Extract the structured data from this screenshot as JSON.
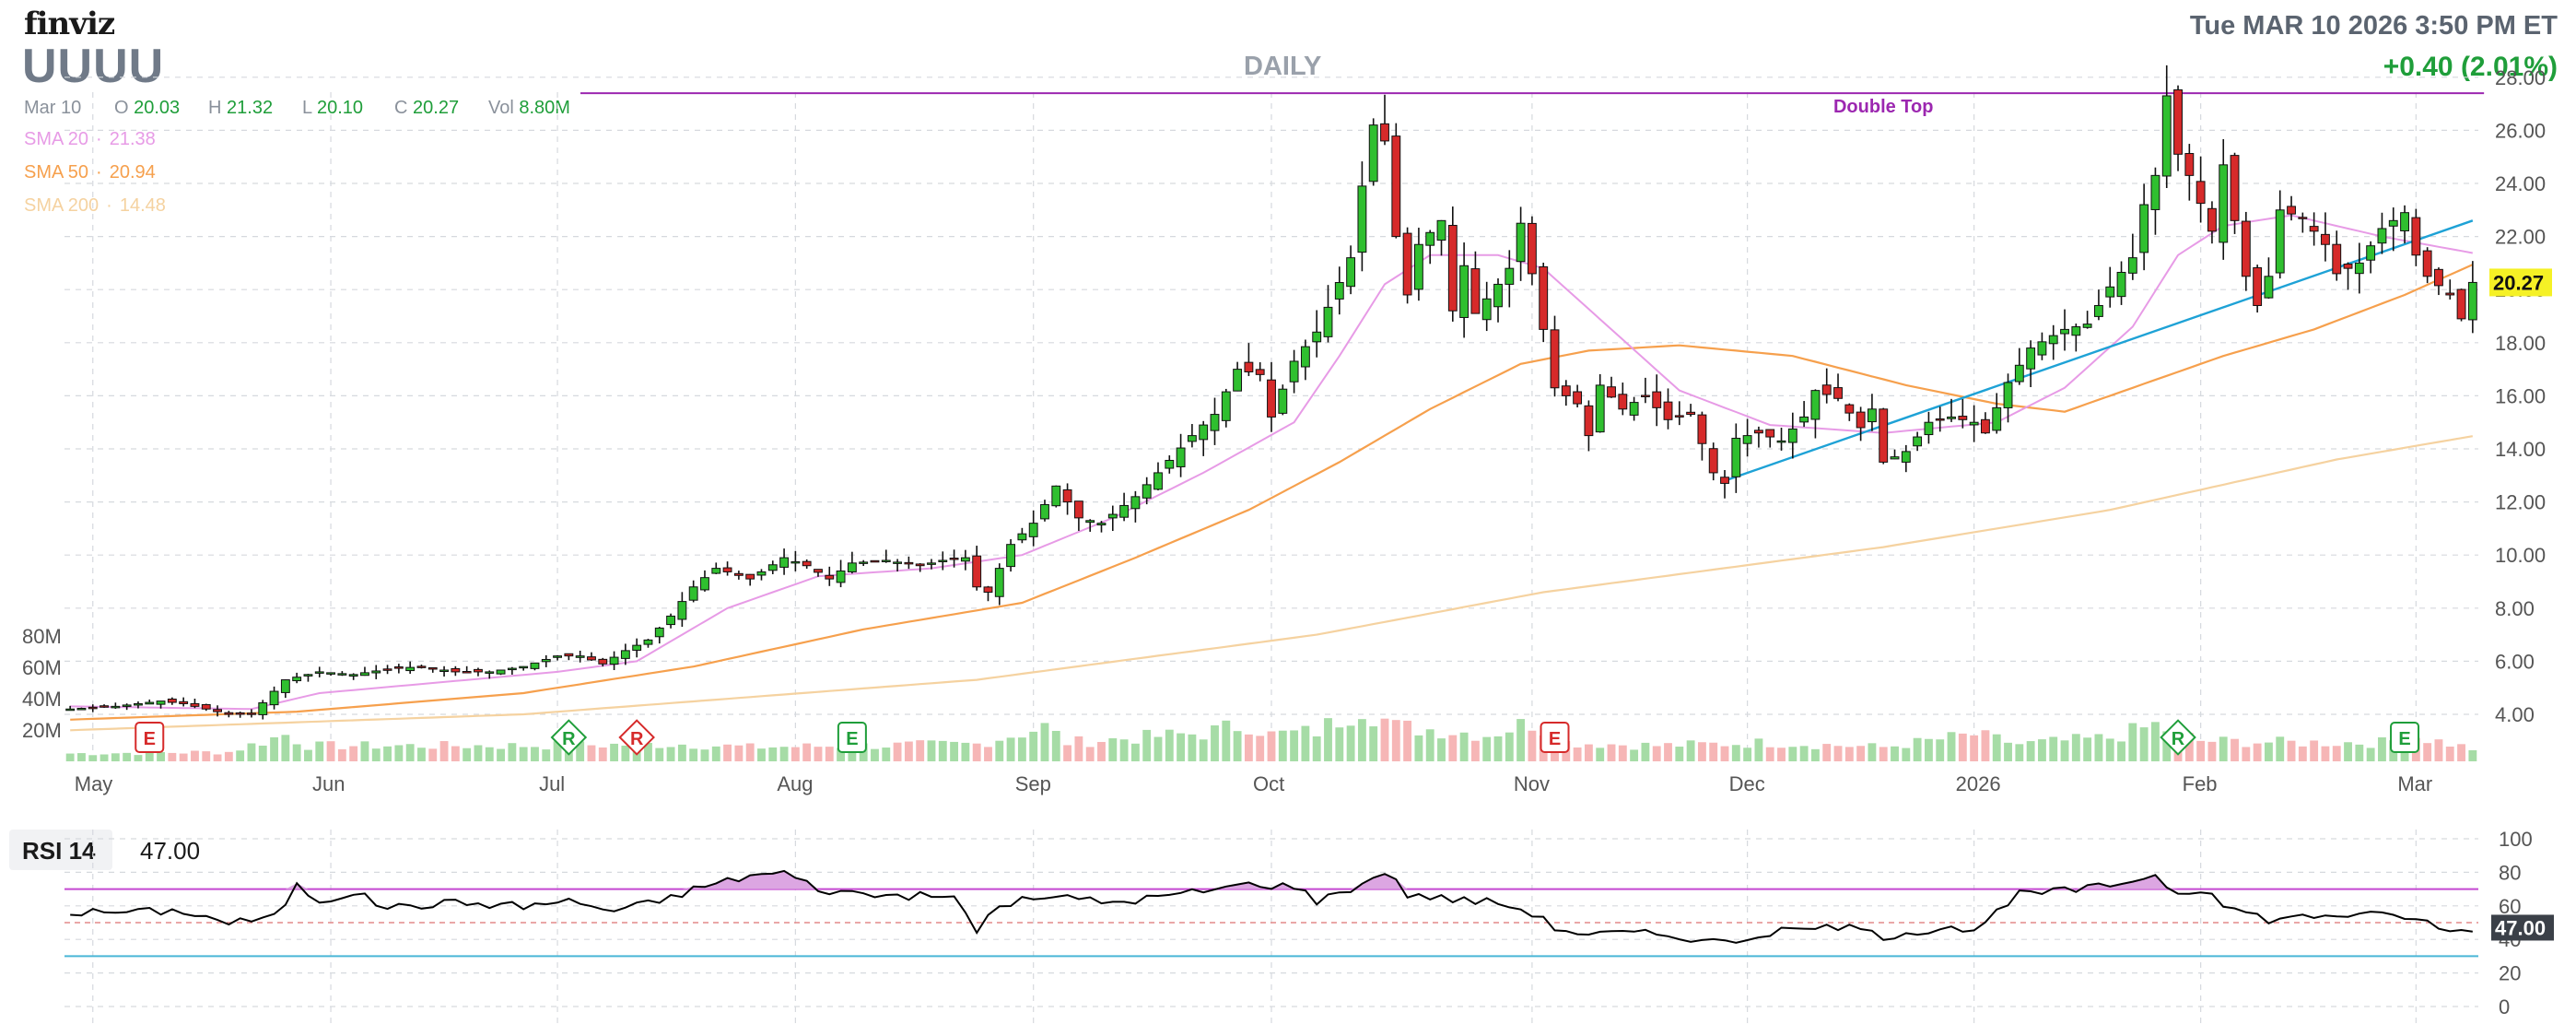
{
  "header": {
    "logo": "finviz",
    "ticker": "UUUU",
    "period": "DAILY",
    "datetime": "Tue MAR 10 2026 3:50 PM ET",
    "change": "+0.40 (2.01%)"
  },
  "ohlc": {
    "date": "Mar 10",
    "o_label": "O",
    "o": "20.03",
    "h_label": "H",
    "h": "21.32",
    "l_label": "L",
    "l": "20.10",
    "c_label": "C",
    "c": "20.27",
    "vol_label": "Vol",
    "vol": "8.80M"
  },
  "sma": [
    {
      "label": "SMA 20",
      "value": "21.38",
      "color": "#e79be6"
    },
    {
      "label": "SMA 50",
      "value": "20.94",
      "color": "#f6a04d"
    },
    {
      "label": "SMA 200",
      "value": "14.48",
      "color": "#f5d2a0"
    }
  ],
  "colors": {
    "up": "#2fbf2f",
    "down": "#d62a2a",
    "up_vol": "#a6dca6",
    "down_vol": "#f6b6b6",
    "sma20": "#e79be6",
    "sma50": "#f6a04d",
    "sma200": "#f5d2a0",
    "trendline": "#1ea2d6",
    "double_top": "#9c27b0",
    "rsi": "#000000",
    "rsi_upper": "#c448d1",
    "rsi_lower": "#4ab6d6",
    "price_tag": "#f5f125",
    "grid": "#d6d9de"
  },
  "chart_data": [
    {
      "type": "candlestick",
      "title": "",
      "ylim": [
        4,
        28
      ],
      "y_ticks": [
        "4.00",
        "6.00",
        "8.00",
        "10.00",
        "12.00",
        "14.00",
        "16.00",
        "18.00",
        "20.00",
        "22.00",
        "24.00",
        "26.00",
        "28.00"
      ],
      "x_ticks": [
        {
          "label": "May",
          "i": 2
        },
        {
          "label": "Jun",
          "i": 23
        },
        {
          "label": "Jul",
          "i": 43
        },
        {
          "label": "Aug",
          "i": 64
        },
        {
          "label": "Sep",
          "i": 85
        },
        {
          "label": "Oct",
          "i": 106
        },
        {
          "label": "Nov",
          "i": 129
        },
        {
          "label": "Dec",
          "i": 148
        },
        {
          "label": "2026",
          "i": 168
        },
        {
          "label": "Feb",
          "i": 188
        },
        {
          "label": "Mar",
          "i": 207
        }
      ],
      "current_price": "20.27",
      "annotation": "Double Top",
      "resistance_level": 27.4,
      "trendline": {
        "i0": 146,
        "y0": 12.8,
        "i1": 212,
        "y1": 22.6
      },
      "events": [
        {
          "label": "E",
          "i": 7,
          "kind": "earnings-down"
        },
        {
          "label": "R",
          "i": 44,
          "kind": "rating-up"
        },
        {
          "label": "R",
          "i": 50,
          "kind": "rating-down"
        },
        {
          "label": "E",
          "i": 69,
          "kind": "earnings-up"
        },
        {
          "label": "E",
          "i": 131,
          "kind": "earnings-down"
        },
        {
          "label": "R",
          "i": 186,
          "kind": "rating-up"
        },
        {
          "label": "E",
          "i": 206,
          "kind": "earnings-up"
        }
      ],
      "anchors": [
        [
          0,
          4.2
        ],
        [
          4,
          4.3
        ],
        [
          8,
          4.5
        ],
        [
          10,
          4.4
        ],
        [
          14,
          4.0
        ],
        [
          16,
          4.0
        ],
        [
          19,
          5.3
        ],
        [
          22,
          5.6
        ],
        [
          25,
          5.5
        ],
        [
          28,
          5.7
        ],
        [
          31,
          5.8
        ],
        [
          34,
          5.6
        ],
        [
          37,
          5.6
        ],
        [
          40,
          5.8
        ],
        [
          43,
          6.2
        ],
        [
          45,
          6.2
        ],
        [
          47,
          5.9
        ],
        [
          49,
          6.4
        ],
        [
          51,
          6.8
        ],
        [
          53,
          7.7
        ],
        [
          55,
          8.8
        ],
        [
          57,
          9.5
        ],
        [
          60,
          9.1
        ],
        [
          63,
          9.9
        ],
        [
          65,
          9.6
        ],
        [
          67,
          9.1
        ],
        [
          69,
          9.7
        ],
        [
          72,
          9.8
        ],
        [
          75,
          9.6
        ],
        [
          77,
          9.8
        ],
        [
          79,
          9.9
        ],
        [
          80,
          8.8
        ],
        [
          81,
          8.6
        ],
        [
          83,
          10.4
        ],
        [
          85,
          11.2
        ],
        [
          87,
          12.6
        ],
        [
          89,
          11.4
        ],
        [
          91,
          11.2
        ],
        [
          94,
          12.2
        ],
        [
          96,
          13.1
        ],
        [
          99,
          14.5
        ],
        [
          101,
          15.3
        ],
        [
          103,
          17.0
        ],
        [
          105,
          16.8
        ],
        [
          106,
          15.2
        ],
        [
          108,
          17.3
        ],
        [
          110,
          18.4
        ],
        [
          113,
          21.2
        ],
        [
          114,
          23.9
        ],
        [
          115,
          26.2
        ],
        [
          116,
          25.6
        ],
        [
          117,
          22.0
        ],
        [
          118,
          19.8
        ],
        [
          119,
          21.7
        ],
        [
          121,
          22.6
        ],
        [
          122,
          19.2
        ],
        [
          123,
          20.9
        ],
        [
          124,
          19.1
        ],
        [
          126,
          20.2
        ],
        [
          127,
          20.8
        ],
        [
          128,
          22.5
        ],
        [
          129,
          20.6
        ],
        [
          130,
          18.5
        ],
        [
          131,
          16.3
        ],
        [
          133,
          15.7
        ],
        [
          134,
          14.5
        ],
        [
          135,
          16.4
        ],
        [
          137,
          15.5
        ],
        [
          139,
          16.0
        ],
        [
          141,
          15.1
        ],
        [
          143,
          15.3
        ],
        [
          145,
          13.1
        ],
        [
          146,
          12.7
        ],
        [
          147,
          14.4
        ],
        [
          149,
          14.6
        ],
        [
          151,
          14.3
        ],
        [
          153,
          15.2
        ],
        [
          154,
          16.2
        ],
        [
          156,
          15.9
        ],
        [
          158,
          14.8
        ],
        [
          159,
          15.5
        ],
        [
          160,
          13.5
        ],
        [
          162,
          13.9
        ],
        [
          164,
          15.0
        ],
        [
          166,
          15.2
        ],
        [
          168,
          15.0
        ],
        [
          169,
          14.6
        ],
        [
          171,
          16.5
        ],
        [
          173,
          17.8
        ],
        [
          176,
          18.5
        ],
        [
          178,
          18.7
        ],
        [
          180,
          20.1
        ],
        [
          182,
          21.2
        ],
        [
          183,
          23.2
        ],
        [
          184,
          24.3
        ],
        [
          185,
          27.3
        ],
        [
          186,
          25.1
        ],
        [
          187,
          24.3
        ],
        [
          189,
          22.2
        ],
        [
          190,
          24.7
        ],
        [
          192,
          20.5
        ],
        [
          193,
          19.4
        ],
        [
          194,
          20.5
        ],
        [
          195,
          23.0
        ],
        [
          197,
          22.7
        ],
        [
          199,
          21.7
        ],
        [
          200,
          20.6
        ],
        [
          202,
          21.0
        ],
        [
          204,
          22.3
        ],
        [
          206,
          22.9
        ],
        [
          207,
          21.3
        ],
        [
          208,
          20.5
        ],
        [
          210,
          19.8
        ],
        [
          211,
          18.9
        ],
        [
          212,
          20.27
        ]
      ],
      "sma20_anchors": [
        [
          0,
          4.3
        ],
        [
          16,
          4.2
        ],
        [
          22,
          4.8
        ],
        [
          43,
          5.6
        ],
        [
          50,
          6.0
        ],
        [
          58,
          8.0
        ],
        [
          66,
          9.2
        ],
        [
          76,
          9.5
        ],
        [
          84,
          10.0
        ],
        [
          92,
          11.4
        ],
        [
          100,
          13.1
        ],
        [
          108,
          15.0
        ],
        [
          112,
          17.5
        ],
        [
          116,
          20.2
        ],
        [
          120,
          21.3
        ],
        [
          126,
          21.3
        ],
        [
          130,
          20.8
        ],
        [
          136,
          18.5
        ],
        [
          142,
          16.2
        ],
        [
          150,
          14.9
        ],
        [
          160,
          14.6
        ],
        [
          170,
          15.0
        ],
        [
          176,
          16.3
        ],
        [
          182,
          18.6
        ],
        [
          186,
          21.3
        ],
        [
          190,
          22.4
        ],
        [
          196,
          22.8
        ],
        [
          204,
          22.0
        ],
        [
          212,
          21.38
        ]
      ],
      "sma50_anchors": [
        [
          0,
          3.8
        ],
        [
          20,
          4.1
        ],
        [
          40,
          4.8
        ],
        [
          55,
          5.8
        ],
        [
          70,
          7.2
        ],
        [
          84,
          8.2
        ],
        [
          94,
          9.9
        ],
        [
          104,
          11.7
        ],
        [
          112,
          13.5
        ],
        [
          120,
          15.5
        ],
        [
          128,
          17.2
        ],
        [
          134,
          17.7
        ],
        [
          142,
          17.9
        ],
        [
          152,
          17.5
        ],
        [
          162,
          16.4
        ],
        [
          170,
          15.7
        ],
        [
          176,
          15.4
        ],
        [
          182,
          16.3
        ],
        [
          190,
          17.5
        ],
        [
          198,
          18.5
        ],
        [
          206,
          19.8
        ],
        [
          212,
          20.94
        ]
      ],
      "sma200_anchors": [
        [
          0,
          3.4
        ],
        [
          40,
          4.0
        ],
        [
          80,
          5.3
        ],
        [
          110,
          7.0
        ],
        [
          130,
          8.6
        ],
        [
          160,
          10.3
        ],
        [
          180,
          11.7
        ],
        [
          200,
          13.6
        ],
        [
          212,
          14.48
        ]
      ],
      "volume": {
        "y_ticks": [
          "20M",
          "40M",
          "60M",
          "80M"
        ],
        "ymax": 80,
        "anchors": [
          [
            0,
            5
          ],
          [
            14,
            6
          ],
          [
            19,
            17
          ],
          [
            21,
            10
          ],
          [
            40,
            10
          ],
          [
            54,
            11
          ],
          [
            60,
            9
          ],
          [
            80,
            11
          ],
          [
            86,
            22
          ],
          [
            88,
            12
          ],
          [
            100,
            18
          ],
          [
            104,
            24
          ],
          [
            106,
            17
          ],
          [
            110,
            19
          ],
          [
            112,
            27
          ],
          [
            114,
            36
          ],
          [
            117,
            22
          ],
          [
            121,
            20
          ],
          [
            125,
            17
          ],
          [
            129,
            25
          ],
          [
            132,
            12
          ],
          [
            140,
            10
          ],
          [
            150,
            12
          ],
          [
            160,
            9
          ],
          [
            168,
            17
          ],
          [
            172,
            11
          ],
          [
            180,
            15
          ],
          [
            184,
            23
          ],
          [
            188,
            13
          ],
          [
            196,
            12
          ],
          [
            204,
            12
          ],
          [
            207,
            16
          ],
          [
            212,
            8
          ]
        ]
      }
    },
    {
      "type": "line",
      "title": "",
      "name": "RSI 14",
      "value": "47.00",
      "ylim": [
        0,
        100
      ],
      "y_ticks": [
        "0",
        "20",
        "40",
        "60",
        "80",
        "100"
      ],
      "upper_band": 70,
      "lower_band": 30,
      "anchors": [
        [
          0,
          56
        ],
        [
          10,
          57
        ],
        [
          14,
          50
        ],
        [
          18,
          53
        ],
        [
          20,
          72
        ],
        [
          22,
          63
        ],
        [
          25,
          68
        ],
        [
          28,
          59
        ],
        [
          34,
          62
        ],
        [
          40,
          60
        ],
        [
          44,
          63
        ],
        [
          48,
          57
        ],
        [
          52,
          63
        ],
        [
          56,
          72
        ],
        [
          60,
          78
        ],
        [
          63,
          80
        ],
        [
          66,
          70
        ],
        [
          70,
          67
        ],
        [
          78,
          65
        ],
        [
          80,
          46
        ],
        [
          82,
          60
        ],
        [
          86,
          66
        ],
        [
          92,
          62
        ],
        [
          98,
          67
        ],
        [
          104,
          73
        ],
        [
          108,
          72
        ],
        [
          110,
          63
        ],
        [
          114,
          73
        ],
        [
          116,
          81
        ],
        [
          118,
          67
        ],
        [
          122,
          64
        ],
        [
          126,
          62
        ],
        [
          129,
          56
        ],
        [
          131,
          47
        ],
        [
          134,
          43
        ],
        [
          138,
          44
        ],
        [
          142,
          42
        ],
        [
          146,
          38
        ],
        [
          150,
          44
        ],
        [
          156,
          48
        ],
        [
          160,
          42
        ],
        [
          166,
          48
        ],
        [
          168,
          44
        ],
        [
          172,
          67
        ],
        [
          176,
          69
        ],
        [
          180,
          72
        ],
        [
          182,
          76
        ],
        [
          184,
          78
        ],
        [
          186,
          68
        ],
        [
          188,
          70
        ],
        [
          190,
          60
        ],
        [
          194,
          52
        ],
        [
          200,
          55
        ],
        [
          206,
          54
        ],
        [
          208,
          50
        ],
        [
          210,
          44
        ],
        [
          212,
          47
        ]
      ]
    }
  ]
}
